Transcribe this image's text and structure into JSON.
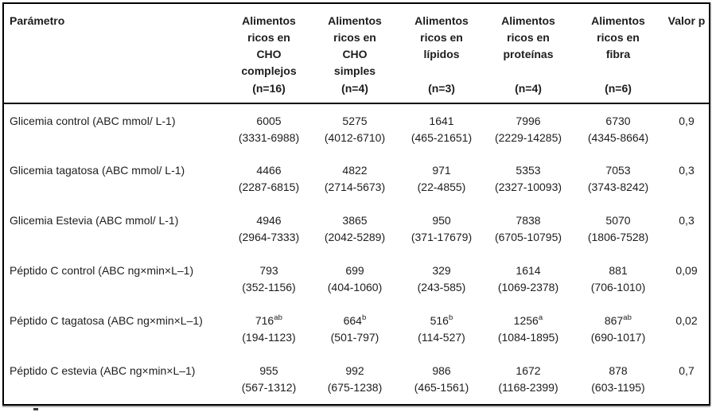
{
  "table": {
    "param_header": "Parámetro",
    "pvalue_header": "Valor p",
    "food_columns": [
      {
        "lines": [
          "Alimentos",
          "ricos en",
          "CHO",
          "complejos"
        ],
        "n": "(n=16)"
      },
      {
        "lines": [
          "Alimentos",
          "ricos en",
          "CHO",
          "simples"
        ],
        "n": "(n=4)"
      },
      {
        "lines": [
          "Alimentos",
          "ricos en",
          "lípidos"
        ],
        "n": "(n=3)"
      },
      {
        "lines": [
          "Alimentos",
          "ricos en",
          "proteínas"
        ],
        "n": "(n=4)"
      },
      {
        "lines": [
          "Alimentos",
          "ricos en",
          "fibra"
        ],
        "n": "(n=6)"
      }
    ],
    "rows": [
      {
        "param": "Glicemia control (ABC mmol/ L-1)",
        "cells": [
          {
            "median": "6005",
            "sup": "",
            "range": "(3331-6988)"
          },
          {
            "median": "5275",
            "sup": "",
            "range": "(4012-6710)"
          },
          {
            "median": "1641",
            "sup": "",
            "range": "(465-21651)"
          },
          {
            "median": "7996",
            "sup": "",
            "range": "(2229-14285)"
          },
          {
            "median": "6730",
            "sup": "",
            "range": "(4345-8664)"
          }
        ],
        "p": "0,9"
      },
      {
        "param": "Glicemia tagatosa (ABC mmol/ L-1)",
        "cells": [
          {
            "median": "4466",
            "sup": "",
            "range": "(2287-6815)"
          },
          {
            "median": "4822",
            "sup": "",
            "range": "(2714-5673)"
          },
          {
            "median": "971",
            "sup": "",
            "range": "(22-4855)"
          },
          {
            "median": "5353",
            "sup": "",
            "range": "(2327-10093)"
          },
          {
            "median": "7053",
            "sup": "",
            "range": "(3743-8242)"
          }
        ],
        "p": "0,3"
      },
      {
        "param": "Glicemia Estevia (ABC mmol/ L-1)",
        "cells": [
          {
            "median": "4946",
            "sup": "",
            "range": "(2964-7333)"
          },
          {
            "median": "3865",
            "sup": "",
            "range": "(2042-5289)"
          },
          {
            "median": "950",
            "sup": "",
            "range": "(371-17679)"
          },
          {
            "median": "7838",
            "sup": "",
            "range": "(6705-10795)"
          },
          {
            "median": "5070",
            "sup": "",
            "range": "(1806-7528)"
          }
        ],
        "p": "0,3"
      },
      {
        "param": "Péptido C control (ABC ng×min×L–1)",
        "cells": [
          {
            "median": "793",
            "sup": "",
            "range": "(352-1156)"
          },
          {
            "median": "699",
            "sup": "",
            "range": "(404-1060)"
          },
          {
            "median": "329",
            "sup": "",
            "range": "(243-585)"
          },
          {
            "median": "1614",
            "sup": "",
            "range": "(1069-2378)"
          },
          {
            "median": "881",
            "sup": "",
            "range": "(706-1010)"
          }
        ],
        "p": "0,09"
      },
      {
        "param": "Péptido C tagatosa (ABC ng×min×L–1)",
        "cells": [
          {
            "median": "716",
            "sup": "ab",
            "range": "(194-1123)"
          },
          {
            "median": "664",
            "sup": "b",
            "range": "(501-797)"
          },
          {
            "median": "516",
            "sup": "b",
            "range": "(114-527)"
          },
          {
            "median": "1256",
            "sup": "a",
            "range": "(1084-1895)"
          },
          {
            "median": "867",
            "sup": "ab",
            "range": "(690-1017)"
          }
        ],
        "p": "0,02"
      },
      {
        "param": "Péptido C estevia (ABC ng×min×L–1)",
        "cells": [
          {
            "median": "955",
            "sup": "",
            "range": "(567-1312)"
          },
          {
            "median": "992",
            "sup": "",
            "range": "(675-1238)"
          },
          {
            "median": "986",
            "sup": "",
            "range": "(465-1561)"
          },
          {
            "median": "1672",
            "sup": "",
            "range": "(1168-2399)"
          },
          {
            "median": "878",
            "sup": "",
            "range": "(603-1195)"
          }
        ],
        "p": "0,7"
      }
    ]
  },
  "colors": {
    "background": "#ffffff",
    "border": "#000000",
    "text": "#1d1d1d"
  }
}
